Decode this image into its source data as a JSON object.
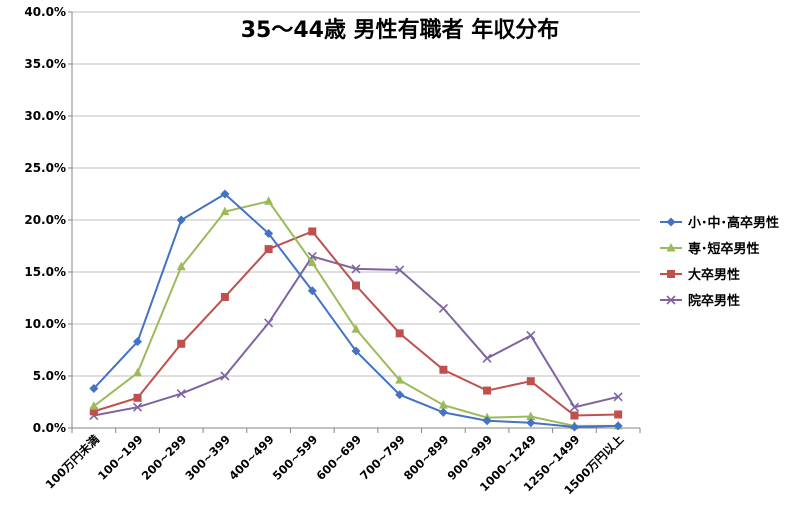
{
  "chart_data": {
    "type": "line",
    "title": "35～44歳 男性有職者 年収分布",
    "categories": [
      "100万円未満",
      "100~199",
      "200~299",
      "300~399",
      "400~499",
      "500~599",
      "600~699",
      "700~799",
      "800~899",
      "900~999",
      "1000~1249",
      "1250~1499",
      "1500万円以上"
    ],
    "ylim": [
      0,
      40
    ],
    "yticks": [
      "0.0%",
      "5.0%",
      "10.0%",
      "15.0%",
      "20.0%",
      "25.0%",
      "30.0%",
      "35.0%",
      "40.0%"
    ],
    "ytick_values": [
      0,
      5,
      10,
      15,
      20,
      25,
      30,
      35,
      40
    ],
    "legend_position": "right",
    "grid": true,
    "series": [
      {
        "name": "小･中･高卒男性",
        "color": "#4472c4",
        "marker": "diamond",
        "values": [
          3.8,
          8.3,
          20.0,
          22.5,
          18.7,
          13.2,
          7.4,
          3.2,
          1.5,
          0.7,
          0.5,
          0.1,
          0.2
        ]
      },
      {
        "name": "専･短卒男性",
        "color": "#9bbb59",
        "marker": "triangle",
        "values": [
          2.1,
          5.3,
          15.5,
          20.8,
          21.8,
          15.9,
          9.5,
          4.6,
          2.2,
          1.0,
          1.1,
          0.2,
          0.2
        ]
      },
      {
        "name": "大卒男性",
        "color": "#c0504d",
        "marker": "square",
        "values": [
          1.6,
          2.9,
          8.1,
          12.6,
          17.2,
          18.9,
          13.7,
          9.1,
          5.6,
          3.6,
          4.5,
          1.2,
          1.3
        ]
      },
      {
        "name": "院卒男性",
        "color": "#8064a2",
        "marker": "x",
        "values": [
          1.2,
          2.0,
          3.3,
          5.0,
          10.1,
          16.5,
          15.3,
          15.2,
          11.5,
          6.7,
          8.9,
          2.0,
          3.0
        ]
      }
    ]
  }
}
